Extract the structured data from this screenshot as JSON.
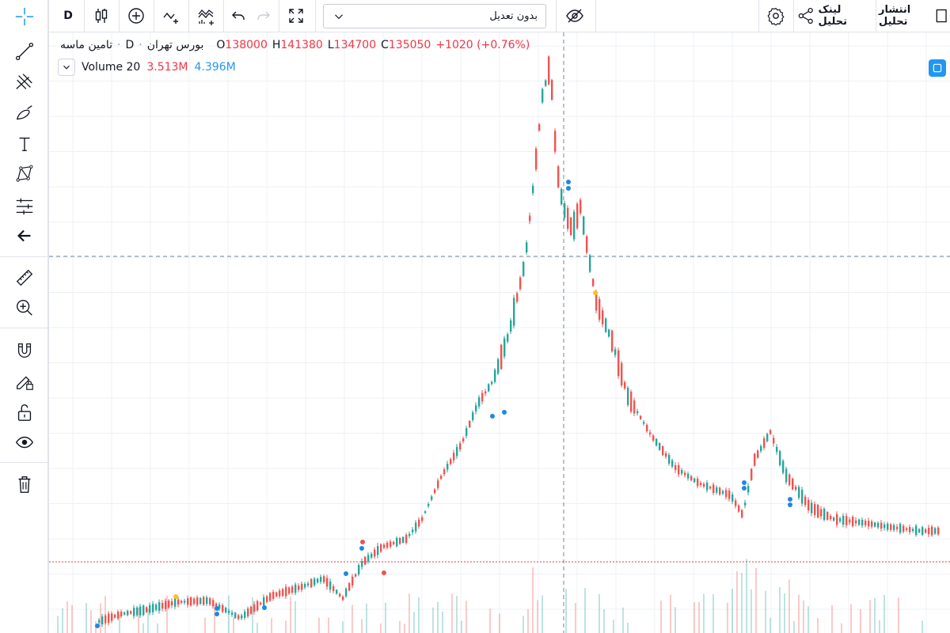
{
  "toolbar": {
    "interval": "D",
    "adjustment": "بدون تعدیل",
    "link_label": "لینک تحلیل",
    "publish_label": "انتشار تحلیل"
  },
  "legend": {
    "symbol": "تامین ماسه",
    "interval": "D",
    "exchange": "بورس تهران",
    "open_key": "O",
    "open": "138000",
    "high_key": "H",
    "high": "141380",
    "low_key": "L",
    "low": "134700",
    "close_key": "C",
    "close": "135050",
    "change": "+1020 (+0.76%)"
  },
  "volume": {
    "label": "Volume 20",
    "value": "3.513M",
    "ma": "4.396M"
  },
  "colors": {
    "up": "#26a69a",
    "down": "#ef5350",
    "grid": "#edf0f5",
    "crosshair": "#758696",
    "price_line": "#f23645",
    "accent": "#2196f3",
    "signal_blue": "#1e88e5",
    "signal_yellow": "#f5c518"
  },
  "sidebar_icons": [
    "crosshair-icon",
    "trend-line-icon",
    "pitchfork-icon",
    "brush-icon",
    "text-icon",
    "pattern-icon",
    "measure-lines-icon",
    "back-arrow-icon",
    "ruler-icon",
    "zoom-in-icon",
    "magnet-icon",
    "lock-drawing-icon",
    "unlock-icon",
    "eye-icon",
    "trash-icon"
  ]
}
